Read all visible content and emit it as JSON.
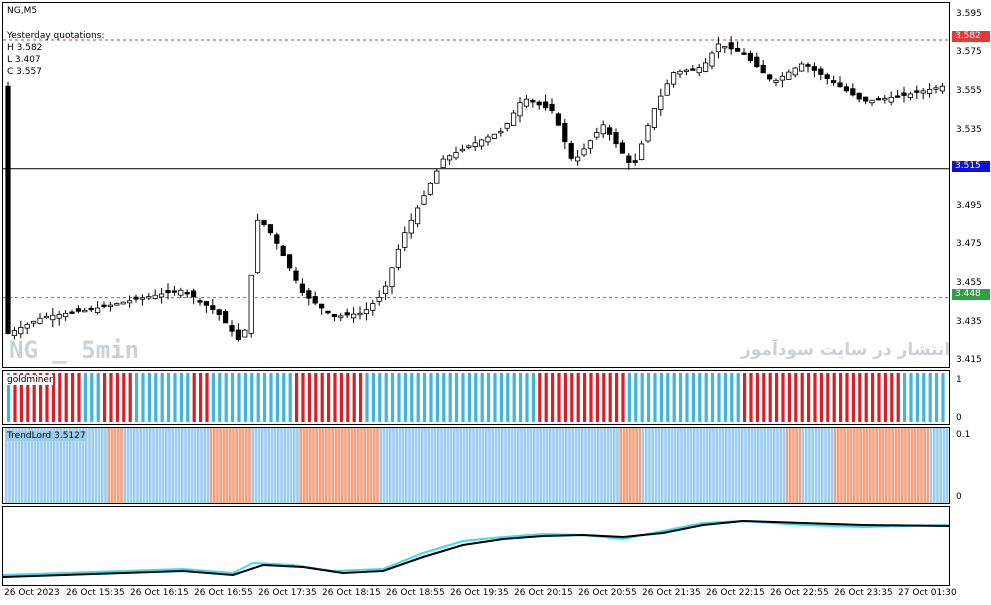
{
  "main": {
    "symbol": "NG,M5",
    "yesterday_label": "Yesterday quotations:",
    "high_line": "H 3.582",
    "low_line": "L 3.407",
    "close_line": "C 3.557",
    "watermark_left": "NG _ 5min",
    "watermark_right": "انتشار در سایت سودآموز",
    "price_axis": [
      "3.595",
      "3.575",
      "3.555",
      "3.535",
      "3.515",
      "3.495",
      "3.475",
      "3.455",
      "3.435",
      "3.415"
    ],
    "tag_red": "3.582",
    "tag_blue": "3.515",
    "tag_green": "3.448",
    "colors": {
      "red_tag": "#e53935",
      "blue_tag": "#1010d0",
      "green_tag": "#2ea043"
    }
  },
  "goldminer": {
    "title": "goldminer",
    "axis_top": "1",
    "axis_bottom": "0",
    "colors": {
      "red": "#d61f26",
      "blue": "#3fb4e0"
    }
  },
  "trendlord": {
    "title": "TrendLord 3.5127",
    "axis_top": "0.1",
    "axis_bottom": "0",
    "colors": {
      "blue": "#9bcdf0",
      "orange": "#f4a07c"
    }
  },
  "time_axis": [
    "26 Oct 2023",
    "26 Oct 15:35",
    "26 Oct 16:15",
    "26 Oct 16:55",
    "26 Oct 17:35",
    "26 Oct 18:15",
    "26 Oct 18:55",
    "26 Oct 19:35",
    "26 Oct 20:15",
    "26 Oct 20:55",
    "26 Oct 21:35",
    "26 Oct 22:15",
    "26 Oct 22:55",
    "26 Oct 23:35",
    "27 Oct 01:30"
  ]
}
